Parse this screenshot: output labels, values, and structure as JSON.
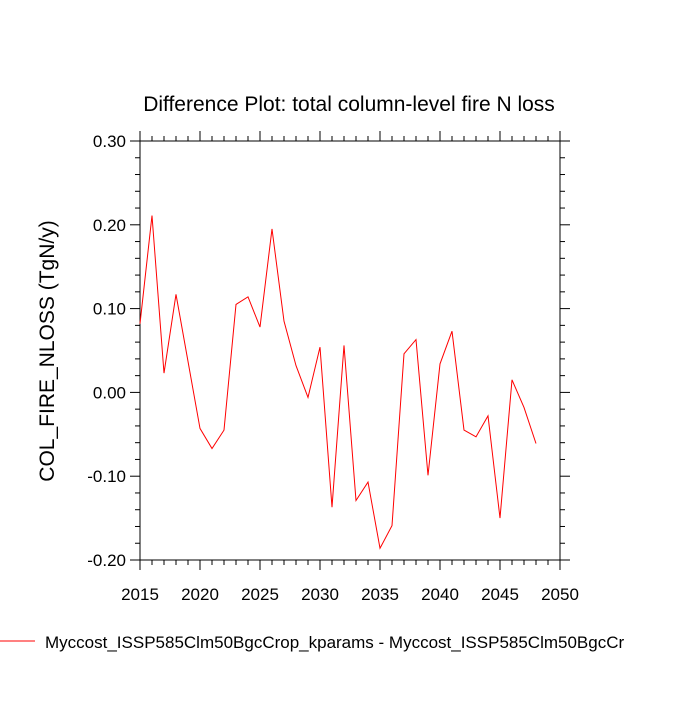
{
  "chart_data": {
    "type": "line",
    "title": "Difference Plot: total column-level fire N loss",
    "xlabel": "",
    "ylabel": "COL_FIRE_NLOSS  (TgN/y)",
    "xlim": [
      2015,
      2050
    ],
    "ylim": [
      -0.2,
      0.3
    ],
    "x_ticks": [
      2015,
      2020,
      2025,
      2030,
      2035,
      2040,
      2045,
      2050
    ],
    "x_tick_labels": [
      "2015",
      "2020",
      "2025",
      "2030",
      "2035",
      "2040",
      "2045",
      "2050"
    ],
    "y_ticks": [
      -0.2,
      -0.1,
      0.0,
      0.1,
      0.2,
      0.3
    ],
    "y_tick_labels": [
      "-0.20",
      "-0.10",
      "0.00",
      "0.10",
      "0.20",
      "0.30"
    ],
    "grid": false,
    "legend_position": "bottom-left",
    "x": [
      2015,
      2016,
      2017,
      2018,
      2019,
      2020,
      2021,
      2022,
      2023,
      2024,
      2025,
      2026,
      2027,
      2028,
      2029,
      2030,
      2031,
      2032,
      2033,
      2034,
      2035,
      2036,
      2037,
      2038,
      2039,
      2040,
      2041,
      2042,
      2043,
      2044,
      2045,
      2046,
      2047,
      2048
    ],
    "series": [
      {
        "name": "Myccost_ISSP585Clm50BgcCrop_kparams - Myccost_ISSP585Clm50BgcCr",
        "color": "#ff0000",
        "values": [
          0.082,
          0.211,
          0.023,
          0.117,
          0.037,
          -0.043,
          -0.067,
          -0.045,
          0.105,
          0.114,
          0.078,
          0.195,
          0.085,
          0.032,
          -0.006,
          0.054,
          -0.137,
          0.056,
          -0.129,
          -0.107,
          -0.186,
          -0.159,
          0.046,
          0.063,
          -0.099,
          0.034,
          0.073,
          -0.045,
          -0.053,
          -0.028,
          -0.15,
          0.015,
          -0.018,
          -0.061
        ]
      }
    ]
  }
}
